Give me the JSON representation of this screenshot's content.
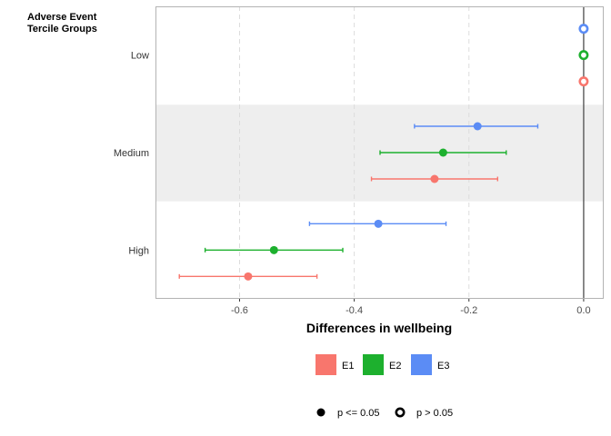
{
  "chart_data": {
    "type": "scatter",
    "title": "Adverse Event Tercile Groups",
    "title_lines": [
      "Adverse Event",
      "Tercile Groups"
    ],
    "xlabel": "Differences in wellbeing",
    "ylabel": "",
    "xlim": [
      -0.745,
      0.035
    ],
    "x_ticks": [
      -0.6,
      -0.4,
      -0.2,
      0.0
    ],
    "x_tick_labels": [
      "-0.6",
      "-0.4",
      "-0.2",
      "0.0"
    ],
    "vertical_grid": "dashed",
    "reference_line_x": 0.0,
    "categories": [
      "Low",
      "Medium",
      "High"
    ],
    "shaded_band": "Medium",
    "series": [
      {
        "name": "E1",
        "color": "#F8766D",
        "points": [
          {
            "group": "Low",
            "value": 0.0,
            "lower": 0.0,
            "upper": 0.0,
            "significant": false
          },
          {
            "group": "Medium",
            "value": -0.26,
            "lower": -0.37,
            "upper": -0.15,
            "significant": true
          },
          {
            "group": "High",
            "value": -0.585,
            "lower": -0.705,
            "upper": -0.465,
            "significant": true
          }
        ]
      },
      {
        "name": "E2",
        "color": "#1DB02E",
        "points": [
          {
            "group": "Low",
            "value": 0.0,
            "lower": 0.0,
            "upper": 0.0,
            "significant": false
          },
          {
            "group": "Medium",
            "value": -0.245,
            "lower": -0.355,
            "upper": -0.135,
            "significant": true
          },
          {
            "group": "High",
            "value": -0.54,
            "lower": -0.66,
            "upper": -0.42,
            "significant": true
          }
        ]
      },
      {
        "name": "E3",
        "color": "#5B8CF5",
        "points": [
          {
            "group": "Low",
            "value": 0.0,
            "lower": 0.0,
            "upper": 0.0,
            "significant": false
          },
          {
            "group": "Medium",
            "value": -0.185,
            "lower": -0.295,
            "upper": -0.08,
            "significant": true
          },
          {
            "group": "High",
            "value": -0.358,
            "lower": -0.478,
            "upper": -0.24,
            "significant": true
          }
        ]
      }
    ],
    "legend_placement": "bottom",
    "shape_legend": [
      {
        "label": "p <= 0.05",
        "filled": true
      },
      {
        "label": "p > 0.05",
        "filled": false
      }
    ]
  }
}
